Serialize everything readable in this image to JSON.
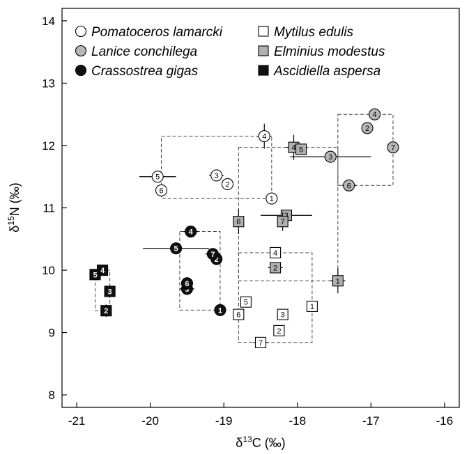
{
  "chart_data": {
    "type": "scatter",
    "xlabel_parts": [
      "δ",
      "13",
      "C (‰)"
    ],
    "ylabel_parts": [
      "δ",
      "15",
      "N (‰)"
    ],
    "xlim": [
      -21.2,
      -15.8
    ],
    "ylim": [
      7.8,
      14.2
    ],
    "xticks": [
      -21,
      -20,
      -19,
      -18,
      -17,
      -16
    ],
    "yticks": [
      8,
      9,
      10,
      11,
      12,
      13,
      14
    ],
    "xtick_labels": [
      "-21",
      "-20",
      "-19",
      "-18",
      "-17",
      "-16"
    ],
    "ytick_labels": [
      "8",
      "9",
      "10",
      "11",
      "12",
      "13",
      "14"
    ],
    "legend_position": "top",
    "series": [
      {
        "name": "Pomatoceros lamarcki",
        "shape": "circle",
        "fill": "#ffffff",
        "text_color": "#000000",
        "points": [
          {
            "label": "1",
            "x": -18.35,
            "y": 11.15,
            "xerr": 0,
            "yerr": 0
          },
          {
            "label": "2",
            "x": -18.95,
            "y": 11.38,
            "xerr": 0,
            "yerr": 0
          },
          {
            "label": "3",
            "x": -19.1,
            "y": 11.52,
            "xerr": 0.1,
            "yerr": 0
          },
          {
            "label": "4",
            "x": -18.45,
            "y": 12.15,
            "xerr": 0.1,
            "yerr": 0.2
          },
          {
            "label": "5",
            "x": -19.9,
            "y": 11.5,
            "xerr": 0.25,
            "yerr": 0
          },
          {
            "label": "6",
            "x": -19.85,
            "y": 11.28,
            "xerr": 0,
            "yerr": 0
          }
        ]
      },
      {
        "name": "Lanice conchilega",
        "shape": "circle",
        "fill": "#b8b8b8",
        "text_color": "#000000",
        "points": [
          {
            "label": "2",
            "x": -17.05,
            "y": 12.28,
            "xerr": 0,
            "yerr": 0
          },
          {
            "label": "3",
            "x": -17.55,
            "y": 11.82,
            "xerr": 0.55,
            "yerr": 0
          },
          {
            "label": "4",
            "x": -16.95,
            "y": 12.5,
            "xerr": 0,
            "yerr": 0
          },
          {
            "label": "6",
            "x": -17.3,
            "y": 11.36,
            "xerr": 0.1,
            "yerr": 0
          },
          {
            "label": "7",
            "x": -16.7,
            "y": 11.97,
            "xerr": 0,
            "yerr": 0
          }
        ]
      },
      {
        "name": "Crassostrea gigas",
        "shape": "circle",
        "fill": "#111111",
        "text_color": "#ffffff",
        "points": [
          {
            "label": "1",
            "x": -19.05,
            "y": 9.36,
            "xerr": 0,
            "yerr": 0
          },
          {
            "label": "2",
            "x": -19.1,
            "y": 10.18,
            "xerr": 0,
            "yerr": 0
          },
          {
            "label": "3",
            "x": -19.5,
            "y": 9.7,
            "xerr": 0.1,
            "yerr": 0
          },
          {
            "label": "4",
            "x": -19.45,
            "y": 10.62,
            "xerr": 0.1,
            "yerr": 0
          },
          {
            "label": "5",
            "x": -19.65,
            "y": 10.35,
            "xerr": 0.45,
            "yerr": 0
          },
          {
            "label": "6",
            "x": -19.5,
            "y": 9.79,
            "xerr": 0,
            "yerr": 0.1
          },
          {
            "label": "7",
            "x": -19.15,
            "y": 10.26,
            "xerr": 0.1,
            "yerr": 0
          }
        ]
      },
      {
        "name": "Mytilus edulis",
        "shape": "square",
        "fill": "#ffffff",
        "text_color": "#000000",
        "points": [
          {
            "label": "1",
            "x": -17.8,
            "y": 9.42,
            "xerr": 0,
            "yerr": 0
          },
          {
            "label": "2",
            "x": -18.25,
            "y": 9.03,
            "xerr": 0,
            "yerr": 0
          },
          {
            "label": "3",
            "x": -18.2,
            "y": 9.29,
            "xerr": 0,
            "yerr": 0
          },
          {
            "label": "4",
            "x": -18.3,
            "y": 10.28,
            "xerr": 0,
            "yerr": 0
          },
          {
            "label": "5",
            "x": -18.7,
            "y": 9.49,
            "xerr": 0,
            "yerr": 0
          },
          {
            "label": "6",
            "x": -18.8,
            "y": 9.29,
            "xerr": 0,
            "yerr": 0
          },
          {
            "label": "7",
            "x": -18.5,
            "y": 8.84,
            "xerr": 0.1,
            "yerr": 0
          }
        ]
      },
      {
        "name": "Elminius modestus",
        "shape": "square",
        "fill": "#b0b0b0",
        "text_color": "#000000",
        "points": [
          {
            "label": "1",
            "x": -17.45,
            "y": 9.83,
            "xerr": 0.1,
            "yerr": 0.2
          },
          {
            "label": "2",
            "x": -18.3,
            "y": 10.04,
            "xerr": 0.1,
            "yerr": 0
          },
          {
            "label": "3",
            "x": -18.15,
            "y": 10.88,
            "xerr": 0.35,
            "yerr": 0
          },
          {
            "label": "4",
            "x": -18.05,
            "y": 11.97,
            "xerr": 0.1,
            "yerr": 0.2
          },
          {
            "label": "5",
            "x": -17.95,
            "y": 11.94,
            "xerr": 0,
            "yerr": 0
          },
          {
            "label": "6",
            "x": -18.8,
            "y": 10.78,
            "xerr": 0,
            "yerr": 0.2
          },
          {
            "label": "7",
            "x": -18.2,
            "y": 10.78,
            "xerr": 0,
            "yerr": 0.15
          }
        ]
      },
      {
        "name": "Ascidiella aspersa",
        "shape": "square",
        "fill": "#111111",
        "text_color": "#ffffff",
        "points": [
          {
            "label": "2",
            "x": -20.6,
            "y": 9.35,
            "xerr": 0,
            "yerr": 0.1
          },
          {
            "label": "3",
            "x": -20.55,
            "y": 9.66,
            "xerr": 0,
            "yerr": 0
          },
          {
            "label": "4",
            "x": -20.65,
            "y": 10.0,
            "xerr": 0,
            "yerr": 0
          },
          {
            "label": "5",
            "x": -20.75,
            "y": 9.93,
            "xerr": 0,
            "yerr": 0
          }
        ]
      }
    ],
    "boxes": [
      {
        "x0": -19.85,
        "x1": -18.35,
        "y0": 11.15,
        "y1": 12.15
      },
      {
        "x0": -18.8,
        "x1": -17.45,
        "y0": 9.83,
        "y1": 11.97
      },
      {
        "x0": -17.45,
        "x1": -16.7,
        "y0": 11.36,
        "y1": 12.5
      },
      {
        "x0": -19.6,
        "x1": -19.05,
        "y0": 9.36,
        "y1": 10.62
      },
      {
        "x0": -18.8,
        "x1": -17.8,
        "y0": 8.84,
        "y1": 10.28
      },
      {
        "x0": -20.75,
        "x1": -20.55,
        "y0": 9.35,
        "y1": 10.0
      }
    ]
  }
}
